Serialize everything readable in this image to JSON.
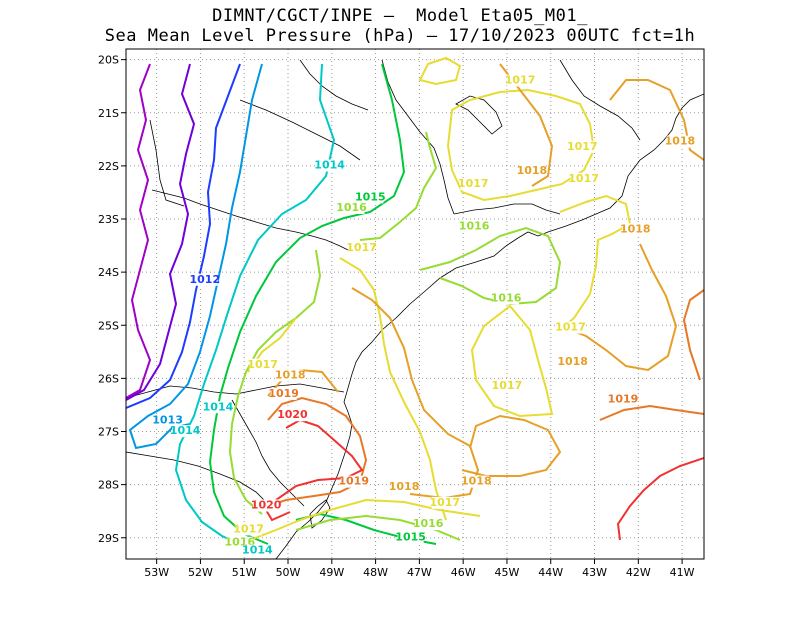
{
  "title": {
    "line1": "DIMNT/CGCT/INPE –  Model Eta05_M01_",
    "line2": "Sea Mean Level Pressure (hPa) – 17/10/2023 00UTC fct=1h"
  },
  "map": {
    "lon_range": [
      -53.7,
      -40.5
    ],
    "lat_range": [
      -29.4,
      -19.8
    ],
    "grid": "dotted",
    "x_ticks": [
      {
        "value": -53,
        "label": "53W"
      },
      {
        "value": -52,
        "label": "52W"
      },
      {
        "value": -51,
        "label": "51W"
      },
      {
        "value": -50,
        "label": "50W"
      },
      {
        "value": -49,
        "label": "49W"
      },
      {
        "value": -48,
        "label": "48W"
      },
      {
        "value": -47,
        "label": "47W"
      },
      {
        "value": -46,
        "label": "46W"
      },
      {
        "value": -45,
        "label": "45W"
      },
      {
        "value": -44,
        "label": "44W"
      },
      {
        "value": -43,
        "label": "43W"
      },
      {
        "value": -42,
        "label": "42W"
      },
      {
        "value": -41,
        "label": "41W"
      }
    ],
    "y_ticks": [
      {
        "value": -20,
        "label": "20S"
      },
      {
        "value": -21,
        "label": "21S"
      },
      {
        "value": -22,
        "label": "22S"
      },
      {
        "value": -23,
        "label": "23S"
      },
      {
        "value": -24,
        "label": "24S"
      },
      {
        "value": -25,
        "label": "25S"
      },
      {
        "value": -26,
        "label": "26S"
      },
      {
        "value": -27,
        "label": "27S"
      },
      {
        "value": -28,
        "label": "28S"
      },
      {
        "value": -29,
        "label": "29S"
      }
    ],
    "colors": {
      "1010": "#a000c8",
      "1011": "#6e00dc",
      "1012": "#1e3cff",
      "1013": "#0096e6",
      "1014": "#00c8c8",
      "1015": "#00c83c",
      "1016": "#96dc32",
      "1017": "#e6dc32",
      "1018": "#e6a028",
      "1019": "#e67828",
      "1020": "#f03232"
    },
    "contour_labels": [
      {
        "text": "1014",
        "lon": -51.6,
        "lat": -26.6,
        "level": "1014"
      },
      {
        "text": "1013",
        "lon": -52.75,
        "lat": -26.85,
        "level": "1013"
      },
      {
        "text": "1014",
        "lon": -52.35,
        "lat": -27.05,
        "level": "1014"
      },
      {
        "text": "1012",
        "lon": -51.9,
        "lat": -24.2,
        "level": "1012"
      },
      {
        "text": "1014",
        "lon": -49.05,
        "lat": -22.05,
        "level": "1014"
      },
      {
        "text": "1015",
        "lon": -48.12,
        "lat": -22.65,
        "level": "1015"
      },
      {
        "text": "1016",
        "lon": -48.55,
        "lat": -22.85,
        "level": "1016"
      },
      {
        "text": "1017",
        "lon": -48.32,
        "lat": -23.6,
        "level": "1017"
      },
      {
        "text": "1017",
        "lon": -44.7,
        "lat": -20.45,
        "level": "1017"
      },
      {
        "text": "1017",
        "lon": -43.28,
        "lat": -21.7,
        "level": "1017"
      },
      {
        "text": "1018",
        "lon": -44.43,
        "lat": -22.15,
        "level": "1018"
      },
      {
        "text": "1017",
        "lon": -43.25,
        "lat": -22.3,
        "level": "1017"
      },
      {
        "text": "1017",
        "lon": -45.77,
        "lat": -22.4,
        "level": "1017"
      },
      {
        "text": "1018",
        "lon": -41.05,
        "lat": -21.6,
        "level": "1018"
      },
      {
        "text": "1016",
        "lon": -45.75,
        "lat": -23.2,
        "level": "1016"
      },
      {
        "text": "1018",
        "lon": -42.07,
        "lat": -23.25,
        "level": "1018"
      },
      {
        "text": "1016",
        "lon": -45.02,
        "lat": -24.55,
        "level": "1016"
      },
      {
        "text": "1017",
        "lon": -43.55,
        "lat": -25.1,
        "level": "1017"
      },
      {
        "text": "1018",
        "lon": -43.5,
        "lat": -25.75,
        "level": "1018"
      },
      {
        "text": "1017",
        "lon": -45.0,
        "lat": -26.2,
        "level": "1017"
      },
      {
        "text": "1019",
        "lon": -42.35,
        "lat": -26.45,
        "level": "1019"
      },
      {
        "text": "1017",
        "lon": -50.58,
        "lat": -25.8,
        "level": "1017"
      },
      {
        "text": "1018",
        "lon": -49.95,
        "lat": -26.0,
        "level": "1018"
      },
      {
        "text": "1019",
        "lon": -50.1,
        "lat": -26.35,
        "level": "1019"
      },
      {
        "text": "1020",
        "lon": -49.9,
        "lat": -26.75,
        "level": "1020"
      },
      {
        "text": "1019",
        "lon": -48.5,
        "lat": -28.0,
        "level": "1019"
      },
      {
        "text": "1018",
        "lon": -47.35,
        "lat": -28.1,
        "level": "1018"
      },
      {
        "text": "1018",
        "lon": -45.7,
        "lat": -28.0,
        "level": "1018"
      },
      {
        "text": "1017",
        "lon": -46.42,
        "lat": -28.4,
        "level": "1017"
      },
      {
        "text": "1016",
        "lon": -46.8,
        "lat": -28.8,
        "level": "1016"
      },
      {
        "text": "1015",
        "lon": -47.2,
        "lat": -29.05,
        "level": "1015"
      },
      {
        "text": "1020",
        "lon": -50.5,
        "lat": -28.45,
        "level": "1020"
      },
      {
        "text": "1017",
        "lon": -50.9,
        "lat": -28.9,
        "level": "1017"
      },
      {
        "text": "1016",
        "lon": -51.1,
        "lat": -29.15,
        "level": "1016"
      },
      {
        "text": "1014",
        "lon": -50.7,
        "lat": -29.3,
        "level": "1014"
      }
    ]
  }
}
